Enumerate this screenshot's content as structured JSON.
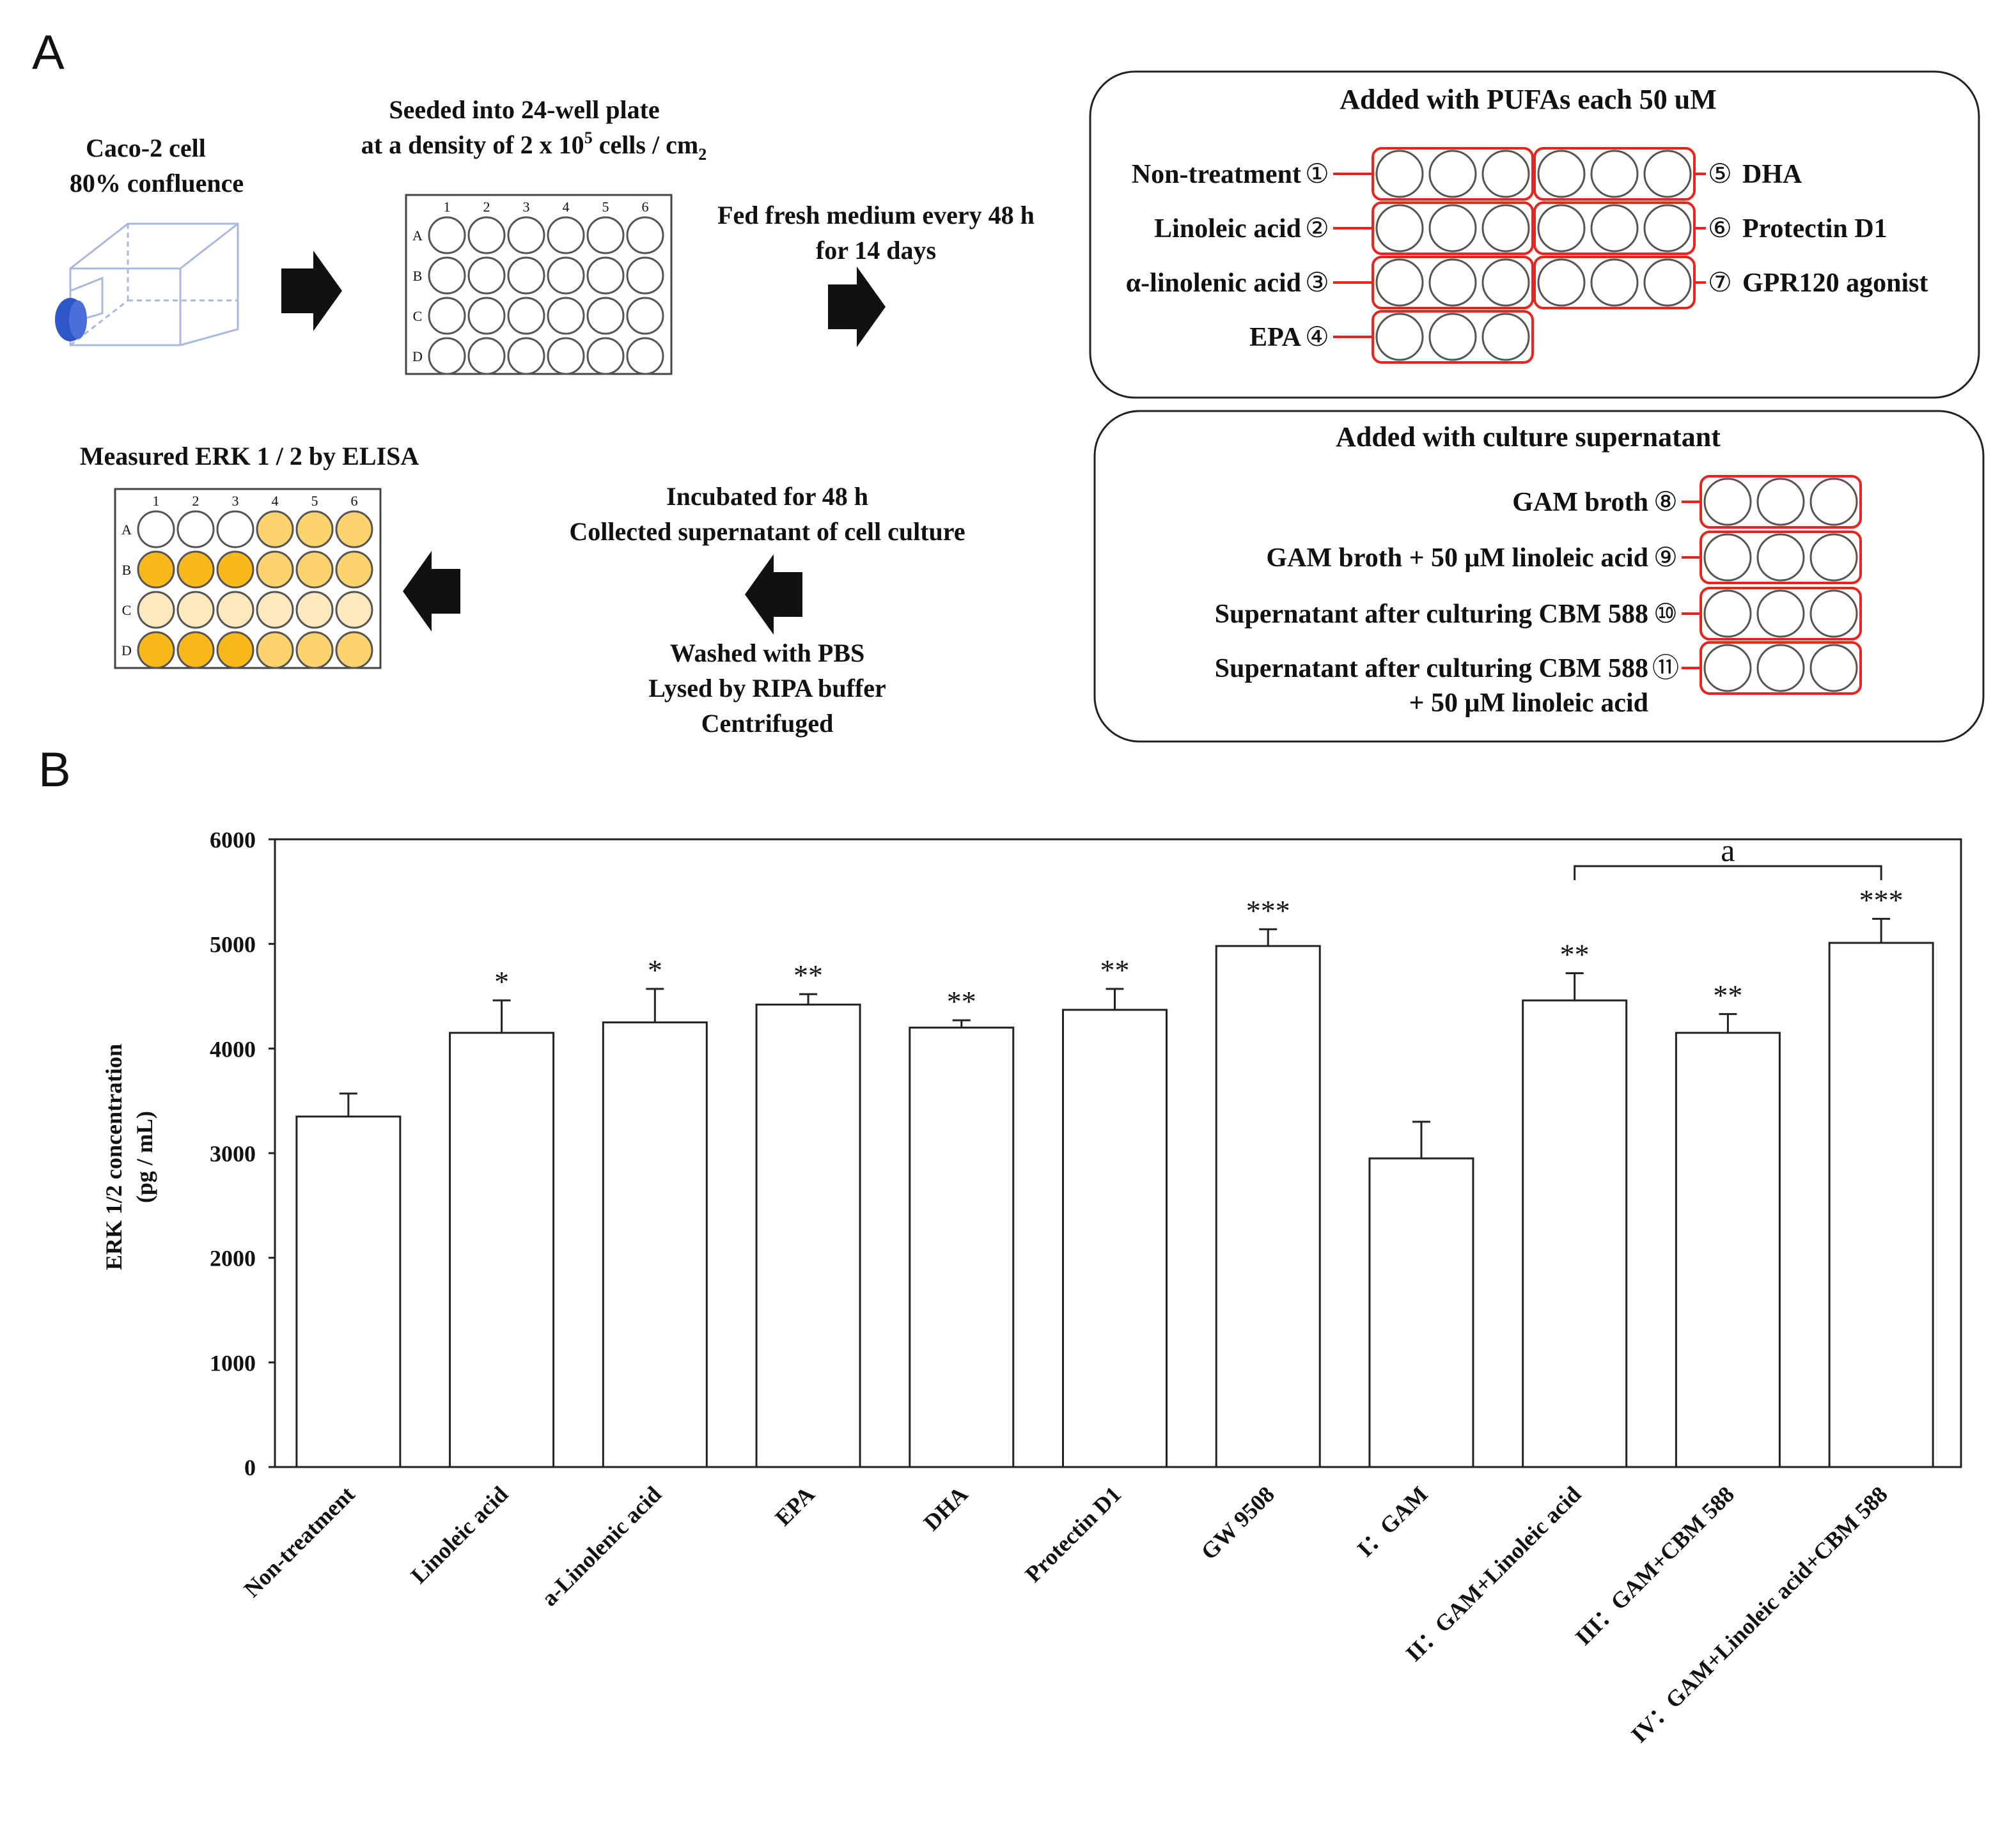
{
  "panel_a": {
    "letter": "A",
    "cell_line": [
      "Caco-2 cell",
      "80% confluence"
    ],
    "seeding": {
      "line1": "Seeded into 24-well plate",
      "line2_prefix": "at a density of 2 x 10",
      "line2_sup": "5",
      "line2_suffix": " cells / cm",
      "line2_sub": "2"
    },
    "feeding": [
      "Fed fresh medium every 48 h",
      "for 14 days"
    ],
    "plate_columns": [
      "1",
      "2",
      "3",
      "4",
      "5",
      "6"
    ],
    "plate_rows": [
      "A",
      "B",
      "C",
      "D"
    ],
    "pufa_box": {
      "title": "Added with PUFAs each 50 uM",
      "left": [
        {
          "label": "Non-treatment",
          "num": "①"
        },
        {
          "label": "Linoleic acid",
          "num": "②"
        },
        {
          "label": "α-linolenic acid",
          "num": "③"
        },
        {
          "label": "EPA",
          "num": "④"
        }
      ],
      "right": [
        {
          "label": "DHA",
          "num": "⑤"
        },
        {
          "label": "Protectin D1",
          "num": "⑥"
        },
        {
          "label": "GPR120 agonist",
          "num": "⑦"
        }
      ]
    },
    "supernatant_box": {
      "title": "Added with culture supernatant",
      "items": [
        {
          "label": "GAM broth",
          "label2": "",
          "num": "⑧"
        },
        {
          "label": "GAM broth + 50 μM linoleic acid",
          "label2": "",
          "num": "⑨"
        },
        {
          "label": "Supernatant after culturing CBM 588",
          "label2": "",
          "num": "⑩"
        },
        {
          "label": "Supernatant after culturing CBM 588",
          "label2": "+ 50 μM linoleic acid",
          "num": "⑪"
        }
      ]
    },
    "incubation": [
      "Incubated for 48 h",
      "Collected supernatant of cell culture"
    ],
    "washing": [
      "Washed with PBS",
      "Lysed by RIPA buffer",
      "Centrifuged"
    ],
    "measure": "Measured ERK 1 / 2 by ELISA",
    "elisa_colors": {
      "white": "#ffffff",
      "light": "#fde9bd",
      "mid": "#fdd36e",
      "dark": "#fbb81a"
    },
    "colors": {
      "red": "#e8241e",
      "flask_blue": "#2e56c8",
      "flask_line": "#a8b8e0"
    }
  },
  "chart_data": {
    "type": "bar",
    "panel_letter": "B",
    "ylabel_line1": "ERK 1/2 concentration",
    "ylabel_line2": "(pg / mL)",
    "ylim": [
      0,
      6000
    ],
    "yticks": [
      "0",
      "1000",
      "2000",
      "3000",
      "4000",
      "5000",
      "6000"
    ],
    "categories": [
      "Non-treatment",
      "Linoleic acid",
      "a-Linolenic acid",
      "EPA",
      "DHA",
      "Protectin D1",
      "GW 9508",
      "I：GAM",
      "II：GAM+Linoleic acid",
      "III：GAM+CBM 588",
      "IV：GAM+Linoleic acid+CBM 588"
    ],
    "values": [
      3350,
      4150,
      4250,
      4420,
      4200,
      4370,
      4980,
      2950,
      4460,
      4150,
      5010
    ],
    "errors": [
      220,
      310,
      320,
      100,
      70,
      200,
      160,
      350,
      260,
      180,
      230
    ],
    "significance": [
      "",
      "*",
      "*",
      "**",
      "**",
      "**",
      "***",
      "",
      "**",
      "**",
      "***"
    ],
    "bracket": {
      "from_index": 8,
      "to_index": 10,
      "label": "a"
    }
  }
}
